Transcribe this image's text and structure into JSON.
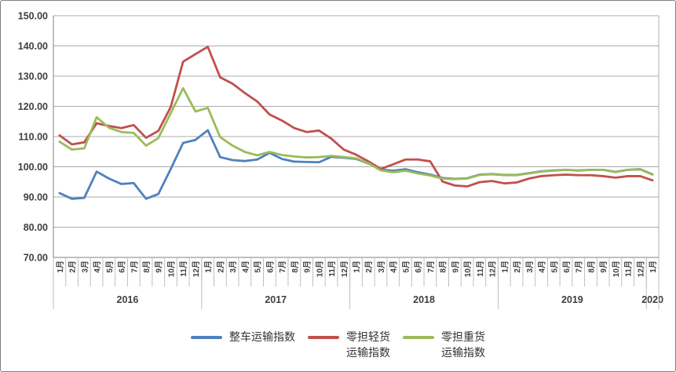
{
  "chart_data": {
    "type": "line",
    "title": "",
    "ylim": [
      70,
      150
    ],
    "grid": "horizontal",
    "legend_position": "bottom-center",
    "y_ticks": [
      "150.00",
      "140.00",
      "130.00",
      "120.00",
      "110.00",
      "100.00",
      "90.00",
      "80.00",
      "70.00"
    ],
    "x_axis": {
      "years": [
        {
          "label": "2016",
          "months": [
            "1月",
            "2月",
            "3月",
            "4月",
            "5月",
            "6月",
            "7月",
            "8月",
            "9月",
            "10月",
            "11月",
            "12月"
          ]
        },
        {
          "label": "2017",
          "months": [
            "1月",
            "2月",
            "3月",
            "4月",
            "5月",
            "6月",
            "7月",
            "8月",
            "9月",
            "10月",
            "11月",
            "12月"
          ]
        },
        {
          "label": "2018",
          "months": [
            "1月",
            "2月",
            "3月",
            "4月",
            "5月",
            "6月",
            "7月",
            "8月",
            "9月",
            "10月",
            "11月",
            "12月"
          ]
        },
        {
          "label": "2019",
          "months": [
            "1月",
            "2月",
            "3月",
            "4月",
            "5月",
            "6月",
            "7月",
            "8月",
            "9月",
            "10月",
            "11月",
            "12月"
          ]
        },
        {
          "label": "2020",
          "months": [
            "1月"
          ]
        }
      ]
    },
    "series": [
      {
        "id": "ftl-index",
        "name": "整车运输指数",
        "color": "#4F81BD",
        "values": [
          91.3,
          89.4,
          89.7,
          98.4,
          96.1,
          94.3,
          94.6,
          89.4,
          91.0,
          99.3,
          107.9,
          108.9,
          112.1,
          103.2,
          102.2,
          101.9,
          102.4,
          104.6,
          102.6,
          101.7,
          101.6,
          101.5,
          103.3,
          103.0,
          102.6,
          101.1,
          99.1,
          98.7,
          99.2,
          98.2,
          97.4,
          96.3,
          96.0,
          96.2,
          97.4,
          97.6,
          97.3,
          97.3,
          97.9,
          98.5,
          98.8,
          99.0,
          98.8,
          99.0,
          99.0,
          98.3,
          99.0,
          99.2,
          97.5
        ]
      },
      {
        "id": "ltl-light-index",
        "name": "零担轻货运输指数",
        "color": "#C0504D",
        "values": [
          110.4,
          107.4,
          108.1,
          114.4,
          113.5,
          112.8,
          113.8,
          109.6,
          111.9,
          119.8,
          134.8,
          137.3,
          139.7,
          129.6,
          127.5,
          124.4,
          121.6,
          117.3,
          115.3,
          112.8,
          111.5,
          112.0,
          109.3,
          105.7,
          104.0,
          101.8,
          99.3,
          100.8,
          102.4,
          102.4,
          101.8,
          95.1,
          93.8,
          93.5,
          94.9,
          95.3,
          94.5,
          94.8,
          96.1,
          96.9,
          97.2,
          97.4,
          97.2,
          97.2,
          96.9,
          96.4,
          96.9,
          96.9,
          95.5
        ]
      },
      {
        "id": "ltl-heavy-index",
        "name": "零担重货运输指数",
        "color": "#9BBB59",
        "values": [
          108.3,
          105.7,
          106.1,
          116.4,
          112.9,
          111.5,
          111.2,
          107.0,
          109.5,
          117.8,
          126.0,
          118.3,
          119.5,
          109.8,
          107.0,
          104.9,
          103.8,
          104.9,
          103.9,
          103.4,
          103.1,
          103.2,
          103.6,
          103.2,
          102.8,
          101.2,
          98.8,
          98.2,
          98.7,
          97.8,
          97.1,
          96.1,
          95.9,
          96.1,
          97.3,
          97.5,
          97.2,
          97.2,
          97.8,
          98.4,
          98.7,
          99.0,
          98.7,
          99.0,
          99.0,
          98.2,
          99.0,
          99.1,
          97.4
        ]
      }
    ]
  },
  "legend": [
    {
      "line1": "整车运输指数",
      "line2": ""
    },
    {
      "line1": "零担轻货",
      "line2": "运输指数"
    },
    {
      "line1": "零担重货",
      "line2": "运输指数"
    }
  ],
  "colors": {
    "grid": "#ACACAC",
    "axis": "#808080",
    "tick": "#BFBFBF",
    "text": "#3F3F3F"
  }
}
